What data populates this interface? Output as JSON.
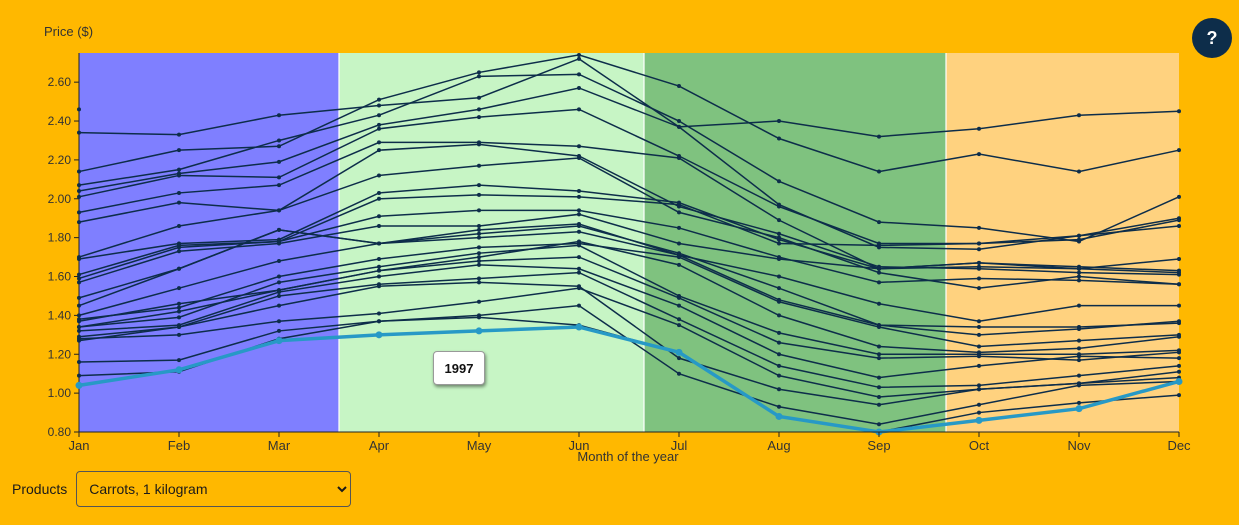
{
  "help": {
    "label": "?"
  },
  "controls": {
    "products_label": "Products",
    "product_selected": "Carrots, 1 kilogram"
  },
  "tooltip": {
    "text": "1997"
  },
  "colors": {
    "background": "#FFB800",
    "winter": "#7F7FFF",
    "spring": "#C7F5C5",
    "summer": "#7FC27F",
    "autumn": "#FFD27F",
    "line": "#0D2D4A",
    "highlight": "#2799C6"
  },
  "chart_data": {
    "type": "line",
    "title": "",
    "xlabel": "Month of the year",
    "ylabel": "Price ($)",
    "ylim": [
      0.8,
      2.75
    ],
    "yticks": [
      "0.80",
      "1.00",
      "1.20",
      "1.40",
      "1.60",
      "1.80",
      "2.00",
      "2.20",
      "2.40",
      "2.60"
    ],
    "categories": [
      "Jan",
      "Feb",
      "Mar",
      "Apr",
      "May",
      "Jun",
      "Jul",
      "Aug",
      "Sep",
      "Oct",
      "Nov",
      "Dec"
    ],
    "highlighted_series": "1997",
    "season_bands": [
      {
        "from_month": 0.0,
        "to_month": 2.6,
        "season": "winter"
      },
      {
        "from_month": 2.6,
        "to_month": 5.65,
        "season": "spring"
      },
      {
        "from_month": 5.65,
        "to_month": 8.67,
        "season": "summer"
      },
      {
        "from_month": 8.67,
        "to_month": 11.0,
        "season": "autumn"
      }
    ],
    "series": [
      {
        "name": "1997",
        "values": [
          1.04,
          1.12,
          1.27,
          1.3,
          1.32,
          1.34,
          1.21,
          0.88,
          0.8,
          0.86,
          0.92,
          1.06
        ]
      },
      {
        "values": [
          2.46,
          null,
          null,
          null,
          null,
          null,
          null,
          null,
          null,
          null,
          null,
          null
        ]
      },
      {
        "values": [
          2.34,
          2.33,
          2.43,
          2.48,
          2.52,
          2.72,
          2.37,
          2.4,
          2.32,
          2.36,
          2.43,
          2.45
        ]
      },
      {
        "values": [
          2.14,
          2.25,
          2.27,
          2.51,
          2.65,
          2.74,
          2.58,
          2.31,
          2.14,
          2.23,
          2.14,
          2.25
        ]
      },
      {
        "values": [
          2.07,
          2.15,
          2.3,
          2.43,
          2.63,
          2.64,
          2.4,
          2.09,
          1.88,
          1.85,
          1.78,
          2.01
        ]
      },
      {
        "values": [
          2.04,
          2.13,
          2.19,
          2.38,
          2.46,
          2.57,
          2.37,
          1.97,
          1.75,
          1.74,
          1.81,
          1.9
        ]
      },
      {
        "values": [
          2.01,
          2.12,
          2.11,
          2.36,
          2.42,
          2.46,
          2.22,
          1.96,
          1.77,
          1.77,
          1.79,
          1.89
        ]
      },
      {
        "values": [
          1.93,
          2.03,
          2.07,
          2.29,
          2.29,
          2.27,
          2.21,
          1.89,
          1.64,
          1.67,
          1.65,
          1.63
        ]
      },
      {
        "values": [
          1.88,
          1.98,
          1.94,
          2.25,
          2.28,
          2.22,
          1.96,
          1.82,
          1.65,
          1.64,
          1.62,
          1.61
        ]
      },
      {
        "values": [
          1.7,
          1.86,
          1.94,
          2.12,
          2.17,
          2.21,
          1.93,
          1.8,
          1.62,
          1.54,
          1.6,
          1.56
        ]
      },
      {
        "values": [
          1.69,
          1.77,
          1.79,
          2.03,
          2.07,
          2.04,
          1.98,
          1.79,
          1.64,
          1.65,
          1.64,
          1.69
        ]
      },
      {
        "values": [
          1.61,
          1.76,
          1.78,
          2.0,
          2.02,
          2.01,
          1.97,
          1.77,
          1.76,
          1.77,
          1.81,
          1.86
        ]
      },
      {
        "values": [
          1.59,
          1.75,
          1.78,
          1.91,
          1.94,
          1.94,
          1.85,
          1.7,
          1.57,
          1.59,
          1.58,
          1.56
        ]
      },
      {
        "values": [
          1.57,
          1.73,
          1.77,
          1.86,
          1.86,
          1.92,
          1.77,
          1.69,
          1.64,
          1.67,
          1.64,
          1.62
        ]
      },
      {
        "values": [
          1.49,
          1.64,
          1.84,
          1.77,
          1.84,
          1.87,
          1.71,
          1.6,
          1.46,
          1.37,
          1.45,
          1.45
        ]
      },
      {
        "values": [
          1.45,
          1.64,
          1.84,
          1.77,
          1.82,
          1.86,
          1.72,
          1.54,
          1.35,
          1.34,
          1.34,
          1.36
        ]
      },
      {
        "values": [
          1.4,
          1.54,
          1.68,
          1.77,
          1.8,
          1.83,
          1.71,
          1.48,
          1.35,
          1.3,
          1.33,
          1.37
        ]
      },
      {
        "values": [
          1.38,
          1.44,
          1.6,
          1.69,
          1.75,
          1.77,
          1.7,
          1.47,
          1.34,
          1.24,
          1.27,
          1.3
        ]
      },
      {
        "values": [
          1.37,
          1.46,
          1.53,
          1.63,
          1.7,
          1.78,
          1.66,
          1.4,
          1.24,
          1.21,
          1.23,
          1.29
        ]
      },
      {
        "values": [
          1.34,
          1.39,
          1.57,
          1.65,
          1.72,
          1.76,
          1.5,
          1.31,
          1.2,
          1.2,
          1.2,
          1.22
        ]
      },
      {
        "values": [
          1.34,
          1.42,
          1.53,
          1.63,
          1.68,
          1.7,
          1.49,
          1.26,
          1.18,
          1.19,
          1.17,
          1.21
        ]
      },
      {
        "values": [
          1.32,
          1.35,
          1.52,
          1.6,
          1.66,
          1.64,
          1.45,
          1.2,
          1.08,
          1.14,
          1.19,
          1.18
        ]
      },
      {
        "values": [
          1.29,
          1.34,
          1.5,
          1.56,
          1.59,
          1.62,
          1.38,
          1.14,
          1.03,
          1.04,
          1.09,
          1.14
        ]
      },
      {
        "values": [
          1.28,
          1.3,
          1.37,
          1.41,
          1.47,
          1.54,
          1.35,
          1.09,
          0.98,
          1.02,
          1.05,
          1.11
        ]
      },
      {
        "values": [
          1.27,
          1.34,
          1.45,
          1.55,
          1.57,
          1.55,
          1.18,
          1.02,
          0.94,
          1.02,
          1.05,
          1.08
        ]
      },
      {
        "values": [
          1.16,
          1.17,
          1.32,
          1.37,
          1.4,
          1.45,
          1.1,
          0.93,
          0.84,
          0.94,
          1.04,
          1.06
        ]
      },
      {
        "values": [
          1.09,
          1.11,
          1.28,
          1.37,
          1.39,
          1.35,
          1.21,
          0.88,
          0.8,
          0.9,
          0.95,
          0.99
        ]
      }
    ]
  }
}
